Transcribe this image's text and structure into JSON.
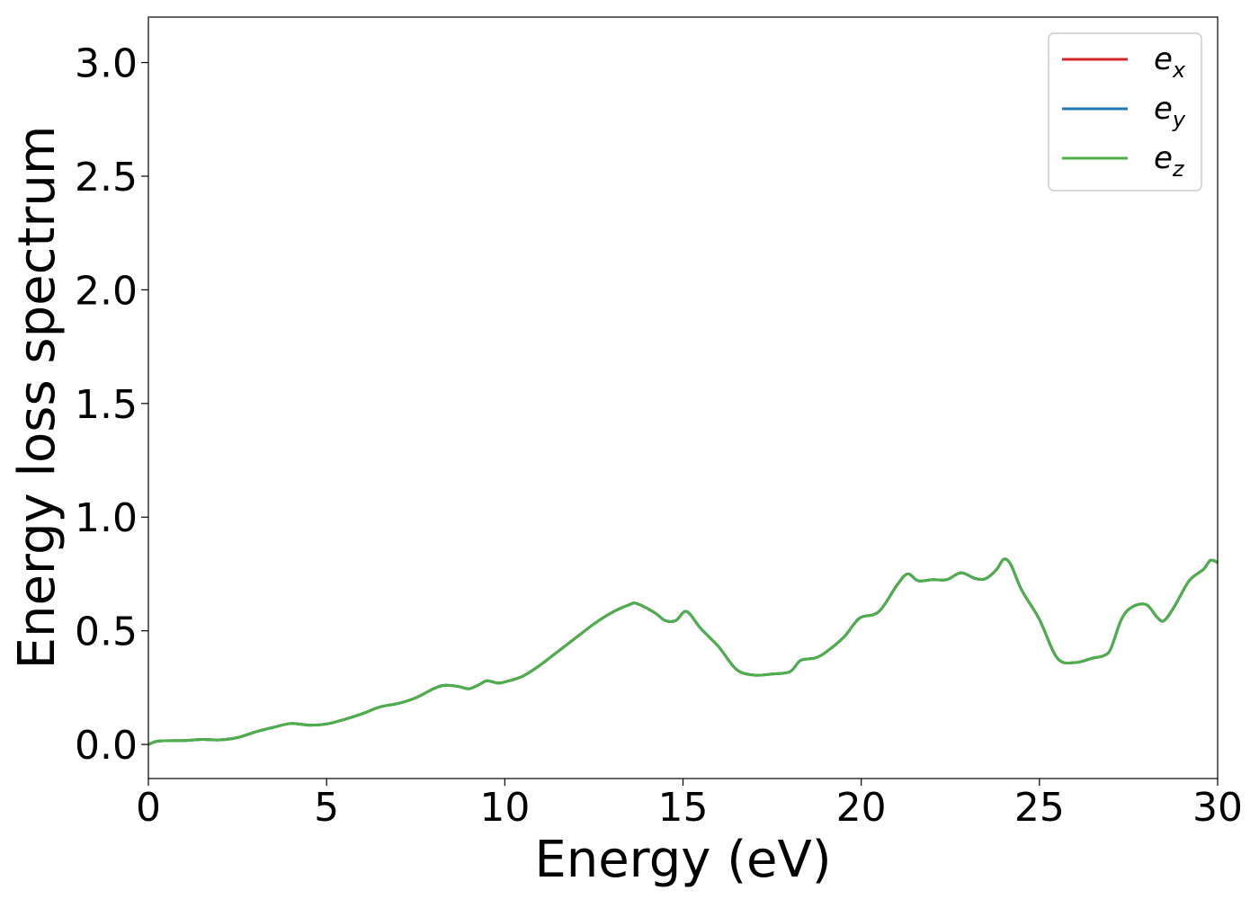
{
  "chart_data": {
    "type": "line",
    "title": "",
    "xlabel": "Energy (eV)",
    "ylabel": "Energy loss spectrum",
    "xlim": [
      0,
      30
    ],
    "ylim": [
      -0.15,
      3.2
    ],
    "xticks": [
      0,
      5,
      10,
      15,
      20,
      25,
      30
    ],
    "xtick_labels": [
      "0",
      "5",
      "10",
      "15",
      "20",
      "25",
      "30"
    ],
    "yticks": [
      0.0,
      0.5,
      1.0,
      1.5,
      2.0,
      2.5,
      3.0
    ],
    "ytick_labels": [
      "0.0",
      "0.5",
      "1.0",
      "1.5",
      "2.0",
      "2.5",
      "3.0"
    ],
    "grid": false,
    "legend_position": "top-right",
    "x": [
      0,
      0.3,
      1.0,
      1.5,
      2.0,
      2.5,
      3.0,
      3.5,
      4.0,
      4.5,
      5.0,
      5.5,
      6.0,
      6.5,
      7.0,
      7.5,
      8.0,
      8.3,
      8.7,
      9.0,
      9.3,
      9.5,
      9.8,
      10.0,
      10.5,
      11.0,
      11.5,
      12.0,
      12.5,
      13.0,
      13.5,
      13.7,
      14.2,
      14.5,
      14.8,
      15.1,
      15.5,
      16.0,
      16.5,
      17.0,
      17.5,
      18.0,
      18.3,
      18.7,
      19.0,
      19.5,
      19.8,
      20.0,
      20.5,
      21.0,
      21.3,
      21.6,
      22.0,
      22.4,
      22.8,
      23.2,
      23.5,
      23.8,
      24.0,
      24.2,
      24.5,
      25.0,
      25.5,
      26.0,
      26.5,
      26.8,
      27.0,
      27.3,
      27.6,
      28.0,
      28.3,
      28.5,
      28.8,
      29.2,
      29.6,
      29.8,
      30.0
    ],
    "series": [
      {
        "name": "e_x",
        "label_main": "e",
        "label_sub": "x",
        "color": "#d62728",
        "values": [
          0.0,
          0.015,
          0.017,
          0.022,
          0.02,
          0.03,
          0.055,
          0.075,
          0.092,
          0.085,
          0.09,
          0.11,
          0.135,
          0.165,
          0.18,
          0.205,
          0.245,
          0.26,
          0.255,
          0.245,
          0.265,
          0.28,
          0.27,
          0.275,
          0.3,
          0.35,
          0.41,
          0.47,
          0.53,
          0.58,
          0.615,
          0.62,
          0.58,
          0.545,
          0.545,
          0.585,
          0.51,
          0.43,
          0.33,
          0.305,
          0.31,
          0.32,
          0.37,
          0.38,
          0.405,
          0.47,
          0.53,
          0.56,
          0.585,
          0.7,
          0.75,
          0.72,
          0.725,
          0.725,
          0.755,
          0.73,
          0.73,
          0.77,
          0.815,
          0.79,
          0.68,
          0.55,
          0.38,
          0.36,
          0.38,
          0.39,
          0.42,
          0.55,
          0.605,
          0.615,
          0.56,
          0.545,
          0.61,
          0.72,
          0.77,
          0.81,
          0.8
        ]
      },
      {
        "name": "e_y",
        "label_main": "e",
        "label_sub": "y",
        "color": "#1f77b4",
        "values": [
          0.0,
          0.015,
          0.017,
          0.022,
          0.02,
          0.03,
          0.055,
          0.075,
          0.092,
          0.085,
          0.09,
          0.11,
          0.135,
          0.165,
          0.18,
          0.205,
          0.245,
          0.26,
          0.255,
          0.245,
          0.265,
          0.28,
          0.27,
          0.275,
          0.3,
          0.35,
          0.41,
          0.47,
          0.53,
          0.58,
          0.615,
          0.62,
          0.58,
          0.545,
          0.545,
          0.585,
          0.51,
          0.43,
          0.33,
          0.305,
          0.31,
          0.32,
          0.37,
          0.38,
          0.405,
          0.47,
          0.53,
          0.56,
          0.585,
          0.7,
          0.75,
          0.72,
          0.725,
          0.725,
          0.755,
          0.73,
          0.73,
          0.77,
          0.815,
          0.79,
          0.68,
          0.55,
          0.38,
          0.36,
          0.38,
          0.39,
          0.42,
          0.55,
          0.605,
          0.615,
          0.56,
          0.545,
          0.61,
          0.72,
          0.77,
          0.81,
          0.8
        ]
      },
      {
        "name": "e_z",
        "label_main": "e",
        "label_sub": "z",
        "color": "#4daf4a",
        "values": [
          0.0,
          0.015,
          0.017,
          0.022,
          0.02,
          0.03,
          0.055,
          0.075,
          0.092,
          0.085,
          0.09,
          0.11,
          0.135,
          0.165,
          0.18,
          0.205,
          0.245,
          0.26,
          0.255,
          0.245,
          0.265,
          0.28,
          0.27,
          0.275,
          0.3,
          0.35,
          0.41,
          0.47,
          0.53,
          0.58,
          0.615,
          0.62,
          0.58,
          0.545,
          0.545,
          0.585,
          0.51,
          0.43,
          0.33,
          0.305,
          0.31,
          0.32,
          0.37,
          0.38,
          0.405,
          0.47,
          0.53,
          0.56,
          0.585,
          0.7,
          0.75,
          0.72,
          0.725,
          0.725,
          0.755,
          0.73,
          0.73,
          0.77,
          0.815,
          0.79,
          0.68,
          0.55,
          0.38,
          0.36,
          0.38,
          0.39,
          0.42,
          0.55,
          0.605,
          0.615,
          0.56,
          0.545,
          0.61,
          0.72,
          0.77,
          0.81,
          0.8
        ]
      }
    ]
  }
}
